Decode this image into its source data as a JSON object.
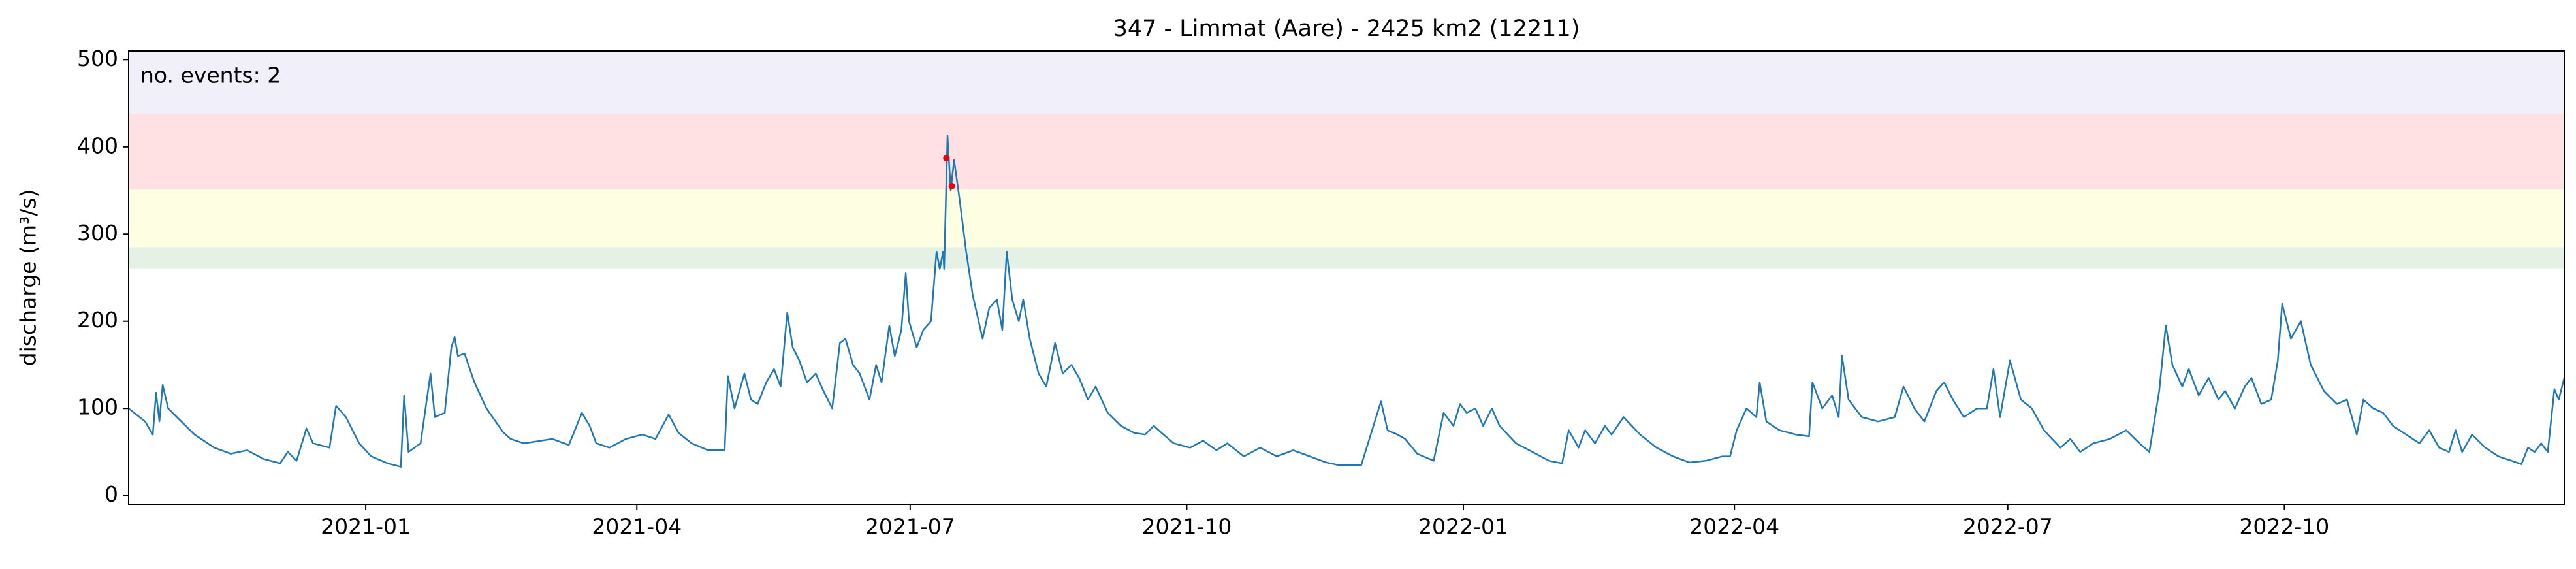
{
  "chart_data": {
    "type": "line",
    "title": "347 - Limmat (Aare) - 2425 km2 (12211)",
    "y_label": "discharge (m³/s)",
    "annotation": "no. events: 2",
    "annotation_color": "#e8000b",
    "xlim": [
      2020.784,
      2023.003
    ],
    "xticks": [
      {
        "value": 2021.0,
        "label": "2021-01"
      },
      {
        "value": 2021.247,
        "label": "2021-04"
      },
      {
        "value": 2021.496,
        "label": "2021-07"
      },
      {
        "value": 2021.748,
        "label": "2021-10"
      },
      {
        "value": 2022.0,
        "label": "2022-01"
      },
      {
        "value": 2022.247,
        "label": "2022-04"
      },
      {
        "value": 2022.496,
        "label": "2022-07"
      },
      {
        "value": 2022.748,
        "label": "2022-10"
      }
    ],
    "ylim": [
      -10,
      510
    ],
    "yticks": [
      0,
      100,
      200,
      300,
      400,
      500
    ],
    "grid": false,
    "bands": [
      {
        "lo": 260,
        "hi": 285,
        "color": "#e5f1e5"
      },
      {
        "lo": 285,
        "hi": 351,
        "color": "#fefee2"
      },
      {
        "lo": 351,
        "hi": 438,
        "color": "#ffe1e4"
      },
      {
        "lo": 438,
        "hi": 510,
        "color": "#f1effa"
      }
    ],
    "series": [
      {
        "color": "#1f77b4",
        "x": [
          2020.784,
          2020.799,
          2020.806,
          2020.809,
          2020.812,
          2020.815,
          2020.82,
          2020.832,
          2020.844,
          2020.862,
          2020.877,
          2020.892,
          2020.907,
          2020.922,
          2020.929,
          2020.937,
          2020.946,
          2020.952,
          2020.967,
          2020.973,
          2020.982,
          2020.994,
          2021.005,
          2021.02,
          2021.032,
          2021.035,
          2021.039,
          2021.05,
          2021.059,
          2021.063,
          2021.072,
          2021.078,
          2021.081,
          2021.084,
          2021.09,
          2021.099,
          2021.11,
          2021.125,
          2021.132,
          2021.144,
          2021.155,
          2021.17,
          2021.185,
          2021.197,
          2021.204,
          2021.21,
          2021.222,
          2021.237,
          2021.252,
          2021.264,
          2021.276,
          2021.285,
          2021.297,
          2021.312,
          2021.327,
          2021.33,
          2021.336,
          2021.345,
          2021.351,
          2021.357,
          2021.365,
          2021.372,
          2021.378,
          2021.384,
          2021.389,
          2021.395,
          2021.402,
          2021.41,
          2021.417,
          2021.425,
          2021.432,
          2021.437,
          2021.444,
          2021.45,
          2021.459,
          2021.465,
          2021.47,
          2021.477,
          2021.482,
          2021.488,
          2021.492,
          2021.495,
          2021.502,
          2021.508,
          2021.515,
          2021.52,
          2021.523,
          2021.526,
          2021.527,
          2021.53,
          2021.533,
          2021.536,
          2021.541,
          2021.547,
          2021.553,
          2021.562,
          2021.568,
          2021.575,
          2021.58,
          2021.584,
          2021.589,
          2021.595,
          2021.599,
          2021.605,
          2021.613,
          2021.62,
          2021.628,
          2021.635,
          2021.643,
          2021.65,
          2021.658,
          2021.665,
          2021.676,
          2021.688,
          2021.7,
          2021.71,
          2021.718,
          2021.725,
          2021.736,
          2021.751,
          2021.763,
          2021.775,
          2021.785,
          2021.8,
          2021.815,
          2021.83,
          2021.845,
          2021.86,
          2021.875,
          2021.886,
          2021.907,
          2021.925,
          2021.931,
          2021.94,
          2021.947,
          2021.958,
          2021.973,
          2021.982,
          2021.991,
          2021.997,
          2022.003,
          2022.011,
          2022.018,
          2022.026,
          2022.033,
          2022.048,
          2022.063,
          2022.078,
          2022.09,
          2022.096,
          2022.105,
          2022.111,
          2022.12,
          2022.129,
          2022.135,
          2022.146,
          2022.161,
          2022.176,
          2022.191,
          2022.206,
          2022.221,
          2022.236,
          2022.243,
          2022.249,
          2022.258,
          2022.267,
          2022.27,
          2022.276,
          2022.288,
          2022.303,
          2022.315,
          2022.318,
          2022.327,
          2022.336,
          2022.342,
          2022.345,
          2022.351,
          2022.363,
          2022.378,
          2022.393,
          2022.401,
          2022.411,
          2022.42,
          2022.431,
          2022.438,
          2022.446,
          2022.456,
          2022.468,
          2022.477,
          2022.483,
          2022.489,
          2022.498,
          2022.508,
          2022.518,
          2022.529,
          2022.544,
          2022.553,
          2022.562,
          2022.574,
          2022.589,
          2022.604,
          2022.616,
          2022.625,
          2022.634,
          2022.64,
          2022.646,
          2022.655,
          2022.661,
          2022.67,
          2022.679,
          2022.688,
          2022.694,
          2022.703,
          2022.712,
          2022.718,
          2022.727,
          2022.736,
          2022.742,
          2022.746,
          2022.754,
          2022.763,
          2022.772,
          2022.784,
          2022.796,
          2022.805,
          2022.814,
          2022.82,
          2022.829,
          2022.838,
          2022.847,
          2022.859,
          2022.871,
          2022.88,
          2022.889,
          2022.898,
          2022.904,
          2022.91,
          2022.919,
          2022.931,
          2022.943,
          2022.955,
          2022.964,
          2022.97,
          2022.976,
          2022.982,
          2022.988,
          2022.994,
          2022.998,
          2023.003
        ],
        "values": [
          100,
          85,
          70,
          118,
          85,
          127,
          100,
          85,
          70,
          55,
          48,
          52,
          42,
          37,
          50,
          40,
          77,
          60,
          55,
          103,
          90,
          60,
          45,
          37,
          33,
          115,
          50,
          60,
          140,
          90,
          95,
          170,
          182,
          160,
          163,
          130,
          100,
          73,
          65,
          60,
          62,
          65,
          58,
          95,
          80,
          60,
          55,
          65,
          70,
          65,
          93,
          72,
          60,
          52,
          52,
          137,
          100,
          140,
          110,
          105,
          130,
          145,
          125,
          210,
          170,
          155,
          130,
          140,
          120,
          100,
          175,
          180,
          150,
          140,
          110,
          150,
          130,
          195,
          160,
          190,
          255,
          200,
          170,
          190,
          200,
          280,
          260,
          280,
          260,
          413,
          350,
          385,
          340,
          280,
          230,
          180,
          215,
          225,
          190,
          280,
          225,
          200,
          225,
          180,
          140,
          125,
          175,
          140,
          150,
          135,
          110,
          125,
          95,
          80,
          72,
          70,
          80,
          72,
          60,
          55,
          63,
          52,
          60,
          45,
          55,
          45,
          52,
          45,
          38,
          35,
          35,
          108,
          75,
          70,
          65,
          48,
          40,
          95,
          80,
          105,
          95,
          100,
          80,
          100,
          80,
          60,
          50,
          40,
          37,
          75,
          55,
          75,
          60,
          80,
          70,
          90,
          70,
          55,
          45,
          38,
          40,
          45,
          45,
          75,
          100,
          90,
          130,
          85,
          75,
          70,
          68,
          130,
          100,
          115,
          90,
          160,
          110,
          90,
          85,
          90,
          125,
          100,
          85,
          120,
          130,
          110,
          90,
          100,
          100,
          145,
          90,
          155,
          110,
          100,
          75,
          55,
          65,
          50,
          60,
          65,
          75,
          60,
          50,
          120,
          195,
          150,
          125,
          145,
          115,
          135,
          110,
          120,
          100,
          125,
          135,
          105,
          110,
          155,
          220,
          180,
          200,
          150,
          120,
          105,
          110,
          70,
          110,
          100,
          95,
          80,
          70,
          60,
          75,
          55,
          50,
          75,
          50,
          70,
          55,
          45,
          40,
          36,
          55,
          50,
          60,
          50,
          122,
          110,
          135
        ]
      },
      {
        "color": "#e8000b",
        "style": "points",
        "x": [
          2021.529,
          2021.534
        ],
        "values": [
          387,
          355
        ]
      }
    ]
  }
}
